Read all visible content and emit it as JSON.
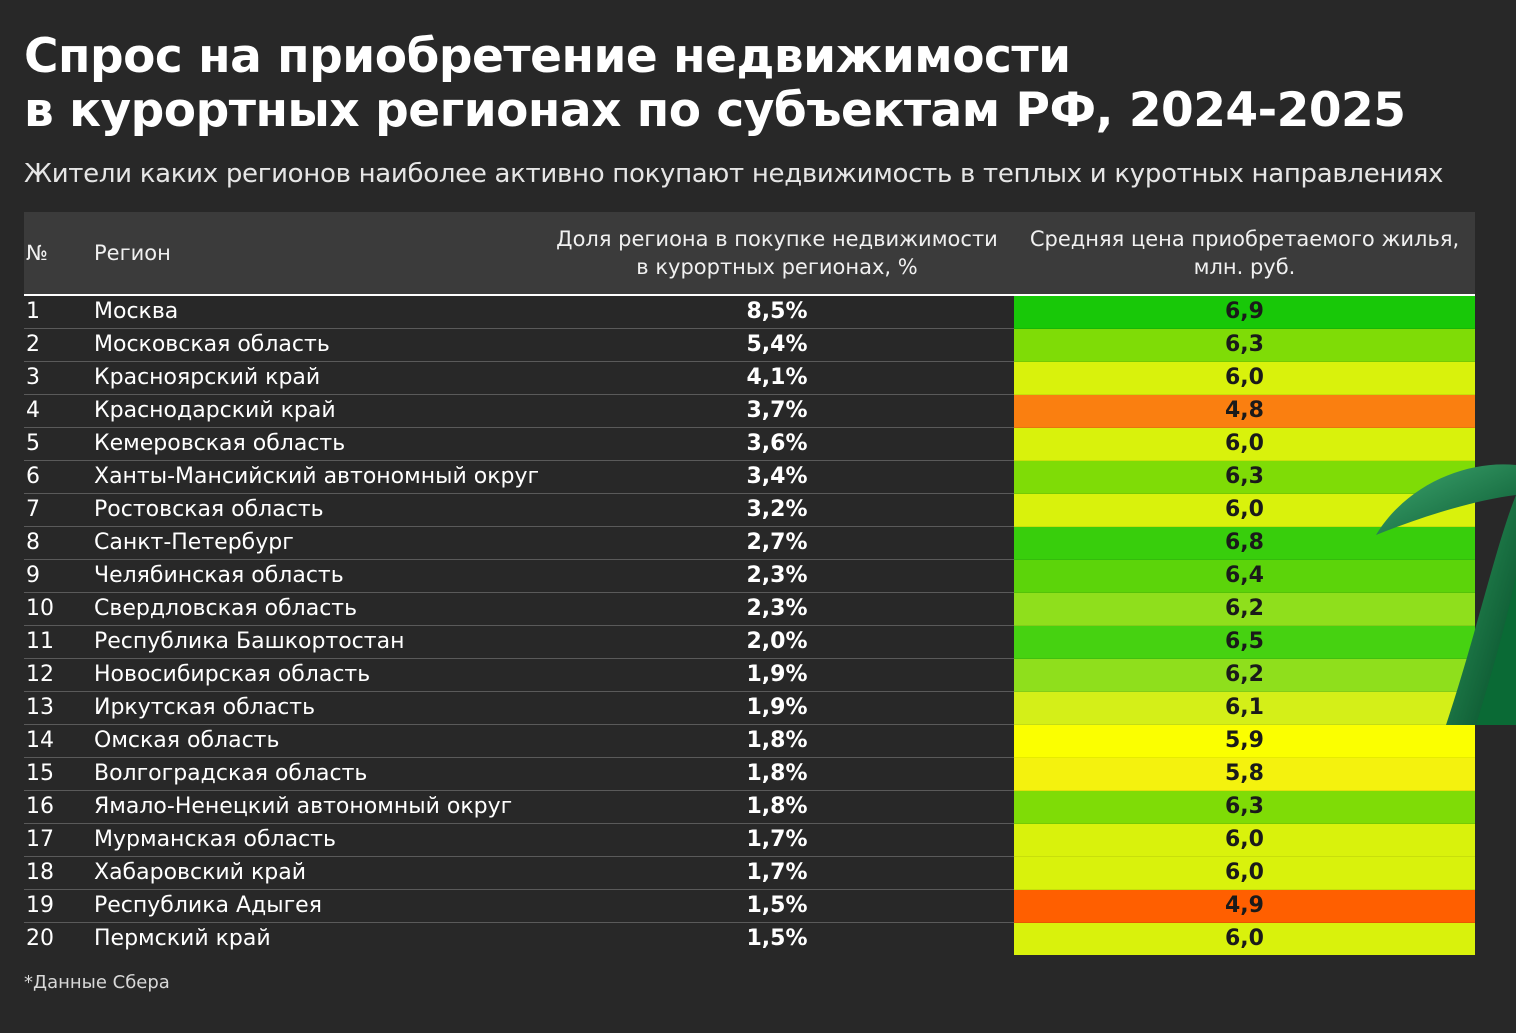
{
  "title_line1": "Спрос на приобретение недвижимости",
  "title_line2": "в курортных регионах по субъектам РФ, 2024-2025",
  "subtitle": "Жители каких регионов наиболее активно покупают недвижимость в теплых и куротных направлениях",
  "footnote": "*Данные Сбера",
  "headers": {
    "num": "№",
    "region": "Регион",
    "share_line1": "Доля региона в покупке недвижимости",
    "share_line2": "в курортных регионах, %",
    "price_line1": "Средняя цена приобретаемого жилья,",
    "price_line2": "млн. руб."
  },
  "price_colors": {
    "4.8": "#fa7f10",
    "4.9": "#ff5f00",
    "5.8": "#f4f20e",
    "5.9": "#fbff00",
    "6.0": "#d9f20c",
    "6.1": "#d4ef18",
    "6.2": "#8fdf1c",
    "6.3": "#7fdc06",
    "6.4": "#5cd40a",
    "6.5": "#46d211",
    "6.8": "#38ce0c",
    "6.9": "#18c808"
  },
  "chart_data": {
    "type": "table",
    "title": "Спрос на приобретение недвижимости в курортных регионах по субъектам РФ, 2024-2025",
    "subtitle": "Жители каких регионов наиболее активно покупают недвижимость в теплых и куротных направлениях",
    "columns": [
      "№",
      "Регион",
      "Доля региона в покупке недвижимости в курортных регионах, %",
      "Средняя цена приобретаемого жилья, млн. руб."
    ],
    "rows": [
      {
        "num": "1",
        "region": "Москва",
        "share": "8,5%",
        "price": "6,9",
        "share_value": 8.5,
        "price_value": 6.9
      },
      {
        "num": "2",
        "region": "Московская область",
        "share": "5,4%",
        "price": "6,3",
        "share_value": 5.4,
        "price_value": 6.3
      },
      {
        "num": "3",
        "region": "Красноярский край",
        "share": "4,1%",
        "price": "6,0",
        "share_value": 4.1,
        "price_value": 6.0
      },
      {
        "num": "4",
        "region": "Краснодарский край",
        "share": "3,7%",
        "price": "4,8",
        "share_value": 3.7,
        "price_value": 4.8
      },
      {
        "num": "5",
        "region": "Кемеровская область",
        "share": "3,6%",
        "price": "6,0",
        "share_value": 3.6,
        "price_value": 6.0
      },
      {
        "num": "6",
        "region": "Ханты-Мансийский автономный округ",
        "share": "3,4%",
        "price": "6,3",
        "share_value": 3.4,
        "price_value": 6.3
      },
      {
        "num": "7",
        "region": "Ростовская область",
        "share": "3,2%",
        "price": "6,0",
        "share_value": 3.2,
        "price_value": 6.0
      },
      {
        "num": "8",
        "region": "Санкт-Петербург",
        "share": "2,7%",
        "price": "6,8",
        "share_value": 2.7,
        "price_value": 6.8
      },
      {
        "num": "9",
        "region": "Челябинская область",
        "share": "2,3%",
        "price": "6,4",
        "share_value": 2.3,
        "price_value": 6.4
      },
      {
        "num": "10",
        "region": "Свердловская область",
        "share": "2,3%",
        "price": "6,2",
        "share_value": 2.3,
        "price_value": 6.2
      },
      {
        "num": "11",
        "region": "Республика Башкортостан",
        "share": "2,0%",
        "price": "6,5",
        "share_value": 2.0,
        "price_value": 6.5
      },
      {
        "num": "12",
        "region": "Новосибирская область",
        "share": "1,9%",
        "price": "6,2",
        "share_value": 1.9,
        "price_value": 6.2
      },
      {
        "num": "13",
        "region": "Иркутская область",
        "share": "1,9%",
        "price": "6,1",
        "share_value": 1.9,
        "price_value": 6.1
      },
      {
        "num": "14",
        "region": "Омская область",
        "share": "1,8%",
        "price": "5,9",
        "share_value": 1.8,
        "price_value": 5.9
      },
      {
        "num": "15",
        "region": "Волгоградская область",
        "share": "1,8%",
        "price": "5,8",
        "share_value": 1.8,
        "price_value": 5.8
      },
      {
        "num": "16",
        "region": "Ямало-Ненецкий автономный округ",
        "share": "1,8%",
        "price": "6,3",
        "share_value": 1.8,
        "price_value": 6.3
      },
      {
        "num": "17",
        "region": "Мурманская область",
        "share": "1,7%",
        "price": "6,0",
        "share_value": 1.7,
        "price_value": 6.0
      },
      {
        "num": "18",
        "region": "Хабаровский край",
        "share": "1,7%",
        "price": "6,0",
        "share_value": 1.7,
        "price_value": 6.0
      },
      {
        "num": "19",
        "region": "Республика Адыгея",
        "share": "1,5%",
        "price": "4,9",
        "share_value": 1.5,
        "price_value": 4.9
      },
      {
        "num": "20",
        "region": "Пермский край",
        "share": "1,5%",
        "price": "6,0",
        "share_value": 1.5,
        "price_value": 6.0
      }
    ]
  }
}
